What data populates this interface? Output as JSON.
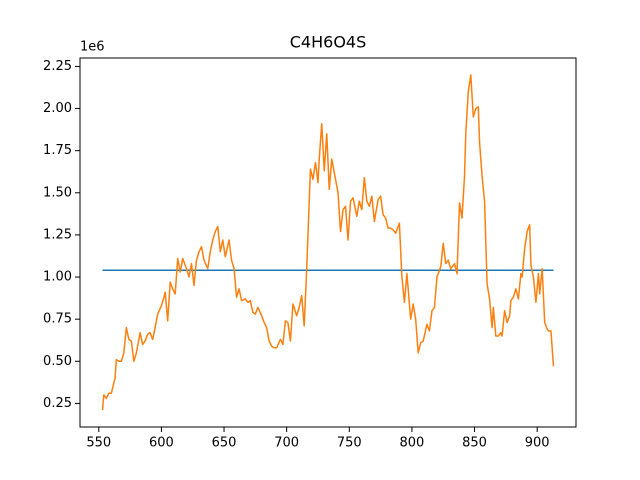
{
  "chart_data": {
    "type": "line",
    "title": "C4H6O4S",
    "y_offset_label": "1e6",
    "xlim": [
      535,
      931
    ],
    "xticks": [
      550,
      600,
      650,
      700,
      750,
      800,
      850,
      900
    ],
    "ylim": [
      0.11,
      2.3
    ],
    "yticks": [
      0.25,
      {
        "value": 0.5,
        "label": "0.50"
      },
      0.75,
      {
        "value": 1,
        "label": "1.00"
      },
      1.25,
      {
        "value": 1.5,
        "label": "1.50"
      },
      1.75,
      {
        "value": 2,
        "label": "2.00"
      },
      2.25
    ],
    "series": [
      {
        "color": "#1f77b4",
        "x": [
          553,
          913
        ],
        "values": [
          1.04,
          1.04
        ]
      },
      {
        "color": "#ff7f0e",
        "x": [
          553,
          554,
          556,
          558,
          560,
          563,
          564,
          566,
          568,
          570,
          572,
          574,
          576,
          578,
          580,
          583,
          585,
          587,
          589,
          591,
          593,
          595,
          597,
          600,
          602,
          603,
          605,
          607,
          609,
          611,
          613,
          615,
          617,
          620,
          622,
          624,
          626,
          628,
          630,
          632,
          634,
          637,
          639,
          641,
          643,
          645,
          647,
          649,
          651,
          654,
          656,
          658,
          660,
          662,
          664,
          667,
          669,
          671,
          673,
          675,
          677,
          680,
          682,
          684,
          686,
          688,
          690,
          692,
          695,
          697,
          699,
          701,
          703,
          705,
          708,
          710,
          712,
          714,
          716,
          718,
          719,
          721,
          723,
          725,
          726,
          728,
          730,
          732,
          734,
          736,
          739,
          741,
          743,
          745,
          747,
          749,
          751,
          753,
          756,
          758,
          760,
          762,
          764,
          766,
          768,
          770,
          773,
          775,
          777,
          779,
          781,
          783,
          785,
          787,
          790,
          792,
          794,
          796,
          799,
          801,
          803,
          805,
          807,
          809,
          812,
          814,
          816,
          818,
          820,
          823,
          825,
          827,
          829,
          831,
          834,
          836,
          838,
          840,
          842,
          843,
          845,
          847,
          849,
          851,
          853,
          854,
          856,
          858,
          860,
          862,
          864,
          865,
          867,
          869,
          871,
          872,
          874,
          876,
          878,
          879,
          881,
          883,
          885,
          887,
          888,
          890,
          892,
          894,
          895,
          897,
          899,
          901,
          902,
          904,
          906,
          908,
          909,
          911,
          913
        ],
        "values": [
          0.21,
          0.3,
          0.28,
          0.31,
          0.31,
          0.4,
          0.51,
          0.5,
          0.5,
          0.55,
          0.7,
          0.63,
          0.62,
          0.5,
          0.55,
          0.67,
          0.6,
          0.62,
          0.66,
          0.67,
          0.63,
          0.7,
          0.78,
          0.83,
          0.88,
          0.91,
          0.74,
          0.97,
          0.93,
          0.9,
          1.11,
          1.03,
          1.11,
          1.05,
          1.0,
          1.08,
          0.95,
          1.1,
          1.15,
          1.18,
          1.1,
          1.05,
          1.15,
          1.22,
          1.27,
          1.3,
          1.15,
          1.22,
          1.12,
          1.22,
          1.1,
          1.05,
          0.88,
          0.93,
          0.86,
          0.87,
          0.85,
          0.86,
          0.79,
          0.78,
          0.82,
          0.77,
          0.73,
          0.7,
          0.62,
          0.59,
          0.58,
          0.58,
          0.63,
          0.6,
          0.74,
          0.73,
          0.62,
          0.84,
          0.77,
          0.82,
          0.89,
          0.71,
          1.05,
          1.45,
          1.64,
          1.58,
          1.68,
          1.56,
          1.7,
          1.91,
          1.63,
          1.85,
          1.52,
          1.7,
          1.58,
          1.5,
          1.27,
          1.4,
          1.42,
          1.22,
          1.45,
          1.47,
          1.36,
          1.45,
          1.4,
          1.59,
          1.45,
          1.42,
          1.48,
          1.33,
          1.46,
          1.48,
          1.37,
          1.35,
          1.29,
          1.29,
          1.28,
          1.26,
          1.32,
          1.0,
          0.85,
          1.02,
          0.75,
          0.84,
          0.75,
          0.55,
          0.61,
          0.62,
          0.72,
          0.68,
          0.8,
          0.82,
          1.0,
          1.06,
          1.2,
          1.08,
          1.1,
          1.05,
          1.08,
          1.02,
          1.44,
          1.35,
          1.6,
          1.85,
          2.1,
          2.2,
          1.95,
          2.0,
          2.01,
          1.8,
          1.6,
          1.45,
          0.96,
          0.87,
          0.7,
          0.82,
          0.65,
          0.65,
          0.67,
          0.65,
          0.8,
          0.73,
          0.77,
          0.86,
          0.88,
          0.93,
          0.87,
          1.02,
          1.0,
          1.17,
          1.27,
          1.31,
          1.07,
          1.0,
          0.85,
          1.02,
          0.9,
          1.05,
          0.73,
          0.69,
          0.68,
          0.68,
          0.47
        ]
      }
    ]
  }
}
